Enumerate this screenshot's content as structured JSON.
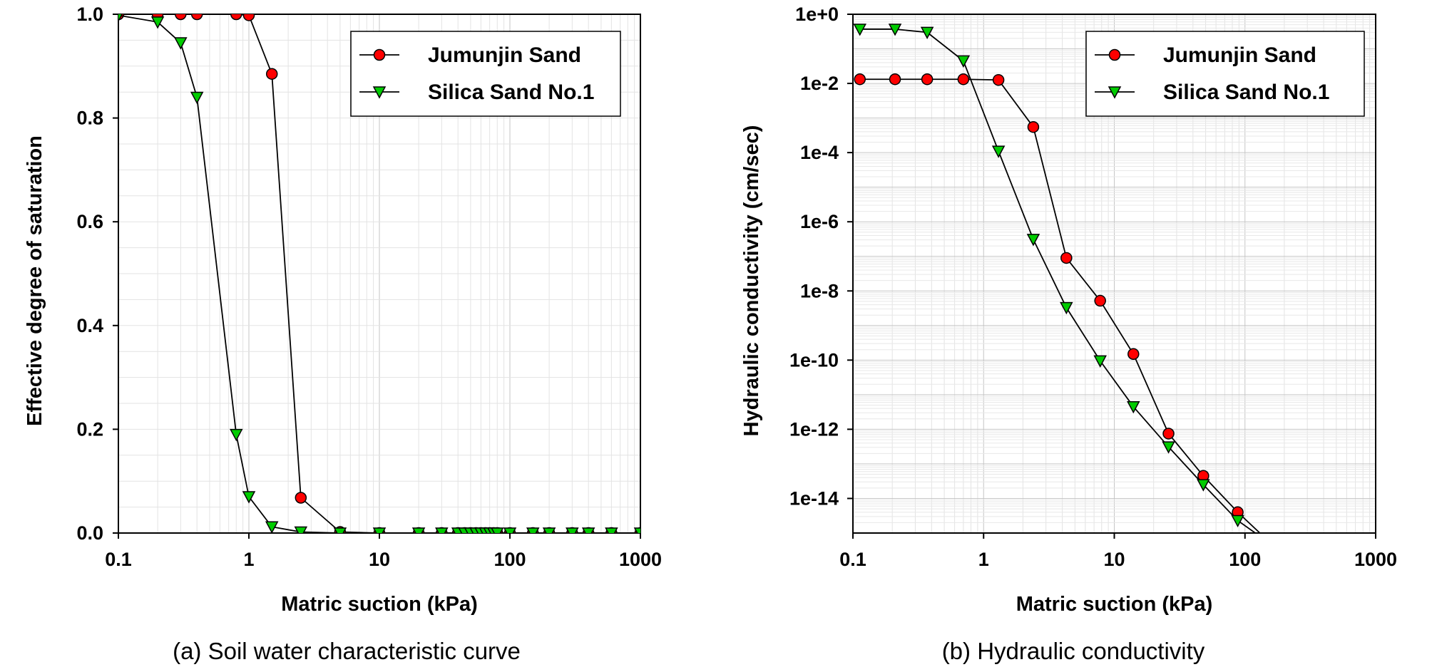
{
  "chart_data": [
    {
      "type": "line",
      "caption": "(a) Soil water characteristic curve",
      "xlabel": "Matric suction (kPa)",
      "ylabel": "Effective degree of saturation",
      "xscale": "log",
      "yscale": "linear",
      "xlim": [
        0.1,
        1000
      ],
      "ylim": [
        0,
        1.0
      ],
      "x_ticks": [
        0.1,
        1,
        10,
        100,
        1000
      ],
      "x_tick_labels": [
        "0.1",
        "1",
        "10",
        "100",
        "1000"
      ],
      "y_ticks": [
        0.0,
        0.2,
        0.4,
        0.6,
        0.8,
        1.0
      ],
      "y_tick_labels": [
        "0.0",
        "0.2",
        "0.4",
        "0.6",
        "0.8",
        "1.0"
      ],
      "grid": true,
      "legend_position": "top-right",
      "series": [
        {
          "name": "Jumunjin Sand",
          "marker": "circle",
          "color": "#ff0000",
          "points": [
            [
              0.1,
              1.0
            ],
            [
              0.2,
              1.0
            ],
            [
              0.3,
              1.0
            ],
            [
              0.4,
              1.0
            ],
            [
              0.8,
              1.0
            ],
            [
              1.0,
              0.998
            ],
            [
              1.5,
              0.885
            ],
            [
              2.5,
              0.068
            ],
            [
              5,
              0.002
            ],
            [
              10,
              0.0
            ],
            [
              20,
              0.0
            ],
            [
              30,
              0.0
            ],
            [
              40,
              0.0
            ],
            [
              45,
              0.0
            ],
            [
              50,
              0.0
            ],
            [
              55,
              0.0
            ],
            [
              60,
              0.0
            ],
            [
              65,
              0.0
            ],
            [
              70,
              0.0
            ],
            [
              75,
              0.0
            ],
            [
              80,
              0.0
            ],
            [
              100,
              0.0
            ],
            [
              150,
              0.0
            ],
            [
              200,
              0.0
            ],
            [
              300,
              0.0
            ],
            [
              400,
              0.0
            ],
            [
              600,
              0.0
            ],
            [
              1000,
              0.0
            ]
          ]
        },
        {
          "name": "Silica Sand No.1",
          "marker": "triangle-down",
          "color": "#00cc00",
          "points": [
            [
              0.1,
              0.998
            ],
            [
              0.2,
              0.985
            ],
            [
              0.3,
              0.945
            ],
            [
              0.4,
              0.84
            ],
            [
              0.8,
              0.19
            ],
            [
              1.0,
              0.07
            ],
            [
              1.5,
              0.012
            ],
            [
              2.5,
              0.002
            ],
            [
              5,
              0.0
            ],
            [
              10,
              0.0
            ],
            [
              20,
              0.0
            ],
            [
              30,
              0.0
            ],
            [
              40,
              0.0
            ],
            [
              45,
              0.0
            ],
            [
              50,
              0.0
            ],
            [
              55,
              0.0
            ],
            [
              60,
              0.0
            ],
            [
              65,
              0.0
            ],
            [
              70,
              0.0
            ],
            [
              75,
              0.0
            ],
            [
              80,
              0.0
            ],
            [
              100,
              0.0
            ],
            [
              150,
              0.0
            ],
            [
              200,
              0.0
            ],
            [
              300,
              0.0
            ],
            [
              400,
              0.0
            ],
            [
              600,
              0.0
            ],
            [
              1000,
              0.0
            ]
          ]
        }
      ]
    },
    {
      "type": "line",
      "caption": "(b) Hydraulic conductivity",
      "xlabel": "Matric suction (kPa)",
      "ylabel": "Hydraulic conductivity (cm/sec)",
      "xscale": "log",
      "yscale": "log",
      "xlim": [
        0.1,
        1000
      ],
      "ylim": [
        1e-15,
        1
      ],
      "x_ticks": [
        0.1,
        1,
        10,
        100,
        1000
      ],
      "x_tick_labels": [
        "0.1",
        "1",
        "10",
        "100",
        "1000"
      ],
      "y_ticks": [
        1,
        0.01,
        0.0001,
        1e-06,
        1e-08,
        1e-10,
        1e-12,
        1e-14
      ],
      "y_tick_labels": [
        "1e+0",
        "1e-2",
        "1e-4",
        "1e-6",
        "1e-8",
        "1e-10",
        "1e-12",
        "1e-14"
      ],
      "grid": true,
      "legend_position": "top-right",
      "series": [
        {
          "name": "Jumunjin Sand",
          "marker": "circle",
          "color": "#ff0000",
          "points": [
            [
              0.113,
              0.0132
            ],
            [
              0.21,
              0.0132
            ],
            [
              0.37,
              0.0132
            ],
            [
              0.7,
              0.0132
            ],
            [
              1.3,
              0.0126
            ],
            [
              2.4,
              0.00055
            ],
            [
              4.3,
              9e-08
            ],
            [
              7.8,
              5.2e-09
            ],
            [
              14,
              1.5e-10
            ],
            [
              26,
              7.5e-13
            ],
            [
              48,
              4.5e-14
            ],
            [
              88,
              4e-15
            ],
            [
              130,
              1e-15
            ]
          ]
        },
        {
          "name": "Silica Sand No.1",
          "marker": "triangle-down",
          "color": "#00cc00",
          "points": [
            [
              0.113,
              0.37
            ],
            [
              0.21,
              0.37
            ],
            [
              0.37,
              0.3
            ],
            [
              0.7,
              0.045
            ],
            [
              1.3,
              0.00011
            ],
            [
              2.4,
              3.1e-07
            ],
            [
              4.3,
              3.3e-09
            ],
            [
              7.8,
              9.5e-11
            ],
            [
              14,
              4.5e-12
            ],
            [
              26,
              3.1e-13
            ],
            [
              48,
              2.5e-14
            ],
            [
              88,
              2.3e-15
            ],
            [
              120,
              1e-15
            ]
          ]
        }
      ]
    }
  ]
}
